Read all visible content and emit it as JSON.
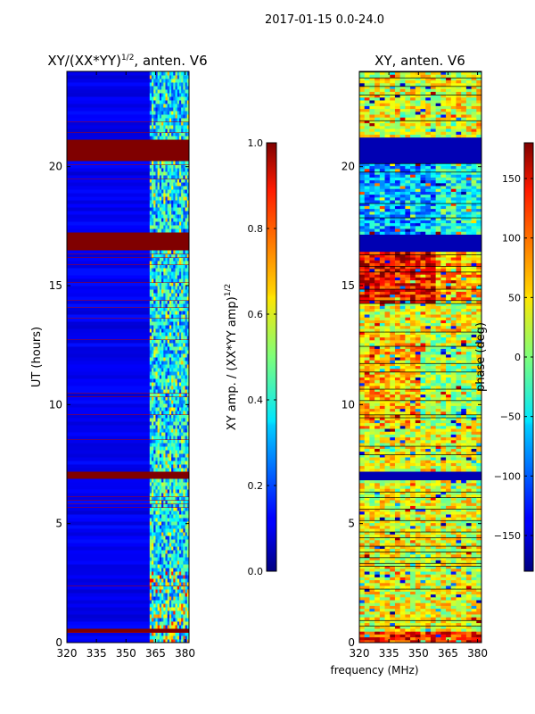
{
  "suptitle": "2017-01-15 0.0-24.0",
  "shared_xlabel": "frequency (MHz)",
  "chart_data": [
    {
      "type": "heatmap",
      "title": "XY/(XX*YY)",
      "title_power": "1/2",
      "title_suffix": ", anten. V6",
      "xlabel": "",
      "ylabel": "UT (hours)",
      "x_range": [
        320,
        382
      ],
      "y_range": [
        0,
        24
      ],
      "x_ticks": [
        320,
        335,
        350,
        365,
        380
      ],
      "y_ticks": [
        0,
        5,
        10,
        15,
        20
      ],
      "colorbar": {
        "label": "XY amp. / (XX*YY amp)",
        "label_power": "1/2",
        "range": [
          0,
          1
        ],
        "ticks": [
          "0.0",
          "0.2",
          "0.4",
          "0.6",
          "0.8",
          "1.0"
        ],
        "tick_values": [
          0,
          0.2,
          0.4,
          0.6,
          0.8,
          1.0
        ],
        "colormap": "jet"
      },
      "saturated_time_bands_hours": [
        [
          0.4,
          0.6
        ],
        [
          6.9,
          7.2
        ],
        [
          16.5,
          17.2
        ],
        [
          20.2,
          21.2
        ]
      ],
      "active_band_start_mhz": 362
    },
    {
      "type": "heatmap",
      "title": "XY, anten. V6",
      "xlabel": "",
      "ylabel": "",
      "x_range": [
        320,
        382
      ],
      "y_range": [
        0,
        24
      ],
      "x_ticks": [
        320,
        335,
        350,
        365,
        380
      ],
      "y_ticks": [
        0,
        5,
        10,
        15,
        20
      ],
      "colorbar": {
        "label": "phase (deg)",
        "range": [
          -180,
          180
        ],
        "ticks": [
          "−150",
          "−100",
          "−50",
          "0",
          "50",
          "100",
          "150"
        ],
        "tick_values": [
          -150,
          -100,
          -50,
          0,
          50,
          100,
          150
        ],
        "colormap": "jet"
      },
      "flagged_time_bands_hours": [
        [
          6.9,
          7.2
        ],
        [
          16.5,
          17.2
        ],
        [
          20.2,
          21.2
        ]
      ]
    }
  ]
}
